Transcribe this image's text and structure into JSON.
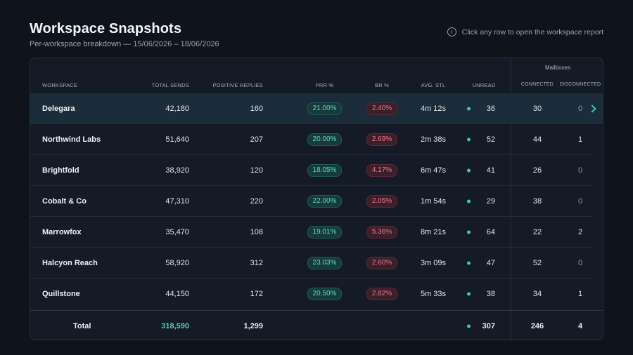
{
  "header": {
    "title": "Workspace Snapshots",
    "subtitle": "Per-workspace breakdown — 15/06/2026 – 18/06/2026",
    "hint": "Click any row to open the workspace report",
    "hint_icon": "info-icon"
  },
  "table": {
    "group_label": "Mailboxes",
    "columns": {
      "workspace": "WORKSPACE",
      "total_sends": "TOTAL SENDS",
      "positive_replies": "POSITIVE REPLIES",
      "prr": "PRR %",
      "br": "BR %",
      "avg_stl": "AVG. STL",
      "unread": "UNREAD",
      "connected": "CONNECTED",
      "disconnected": "DISCONNECTED"
    },
    "rows": [
      {
        "name": "Delegara",
        "sends": "42,180",
        "replies": "160",
        "prr": "21.00%",
        "br": "2.40%",
        "stl": "4m 12s",
        "unread": "36",
        "connected": "30",
        "disconnected": "0"
      },
      {
        "name": "Northwind Labs",
        "sends": "51,640",
        "replies": "207",
        "prr": "20.00%",
        "br": "2.69%",
        "stl": "2m 38s",
        "unread": "52",
        "connected": "44",
        "disconnected": "1"
      },
      {
        "name": "Brightfold",
        "sends": "38,920",
        "replies": "120",
        "prr": "18.05%",
        "br": "4.17%",
        "stl": "6m 47s",
        "unread": "41",
        "connected": "26",
        "disconnected": "0"
      },
      {
        "name": "Cobalt & Co",
        "sends": "47,310",
        "replies": "220",
        "prr": "22.00%",
        "br": "2.05%",
        "stl": "1m 54s",
        "unread": "29",
        "connected": "38",
        "disconnected": "0"
      },
      {
        "name": "Marrowfox",
        "sends": "35,470",
        "replies": "108",
        "prr": "19.01%",
        "br": "5.36%",
        "stl": "8m 21s",
        "unread": "64",
        "connected": "22",
        "disconnected": "2"
      },
      {
        "name": "Halcyon Reach",
        "sends": "58,920",
        "replies": "312",
        "prr": "23.03%",
        "br": "2.60%",
        "stl": "3m 09s",
        "unread": "47",
        "connected": "52",
        "disconnected": "0"
      },
      {
        "name": "Quillstone",
        "sends": "44,150",
        "replies": "172",
        "prr": "20.50%",
        "br": "2.82%",
        "stl": "5m 33s",
        "unread": "38",
        "connected": "34",
        "disconnected": "1"
      }
    ],
    "totals": {
      "label": "Total",
      "sends": "318,590",
      "replies": "1,299",
      "unread": "307",
      "connected": "246",
      "disconnected": "4"
    },
    "colors": {
      "accent": "#3ec9b0",
      "prr_pill": "#5fd8c0",
      "br_pill": "#ef7b8c",
      "selected_row": "#1b2d3a"
    }
  }
}
